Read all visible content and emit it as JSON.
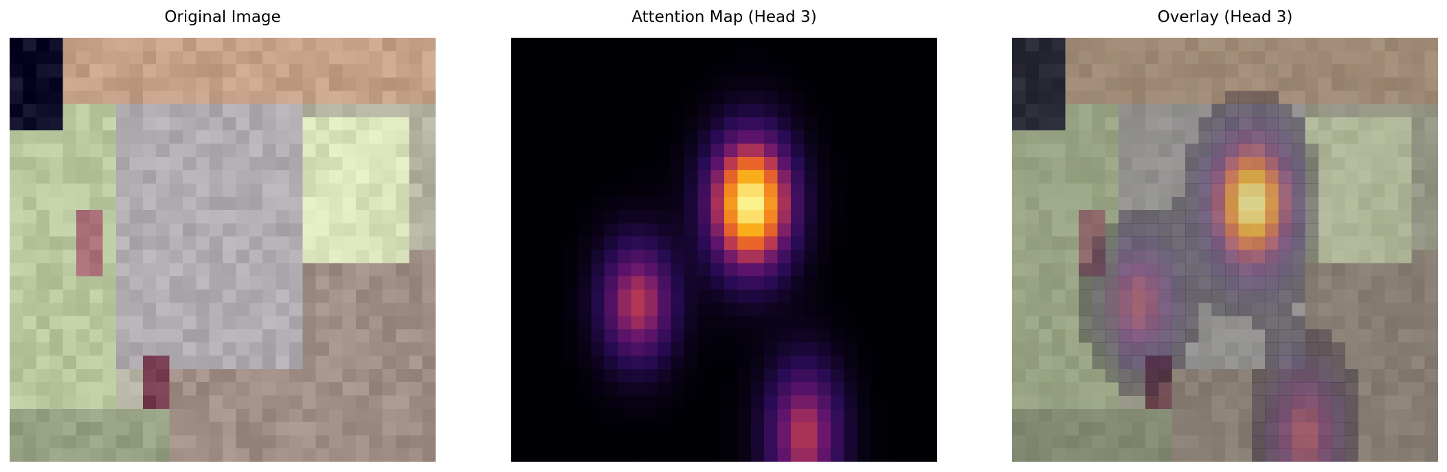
{
  "panels": [
    {
      "title": "Original Image"
    },
    {
      "title": "Attention Map (Head 3)"
    },
    {
      "title": "Overlay (Head 3)"
    }
  ],
  "colors": {
    "background": "#ffffff",
    "attention_low": "#000004",
    "attention_mid": "#b63c53",
    "attention_high": "#fcffa4"
  },
  "grid_size": 32
}
